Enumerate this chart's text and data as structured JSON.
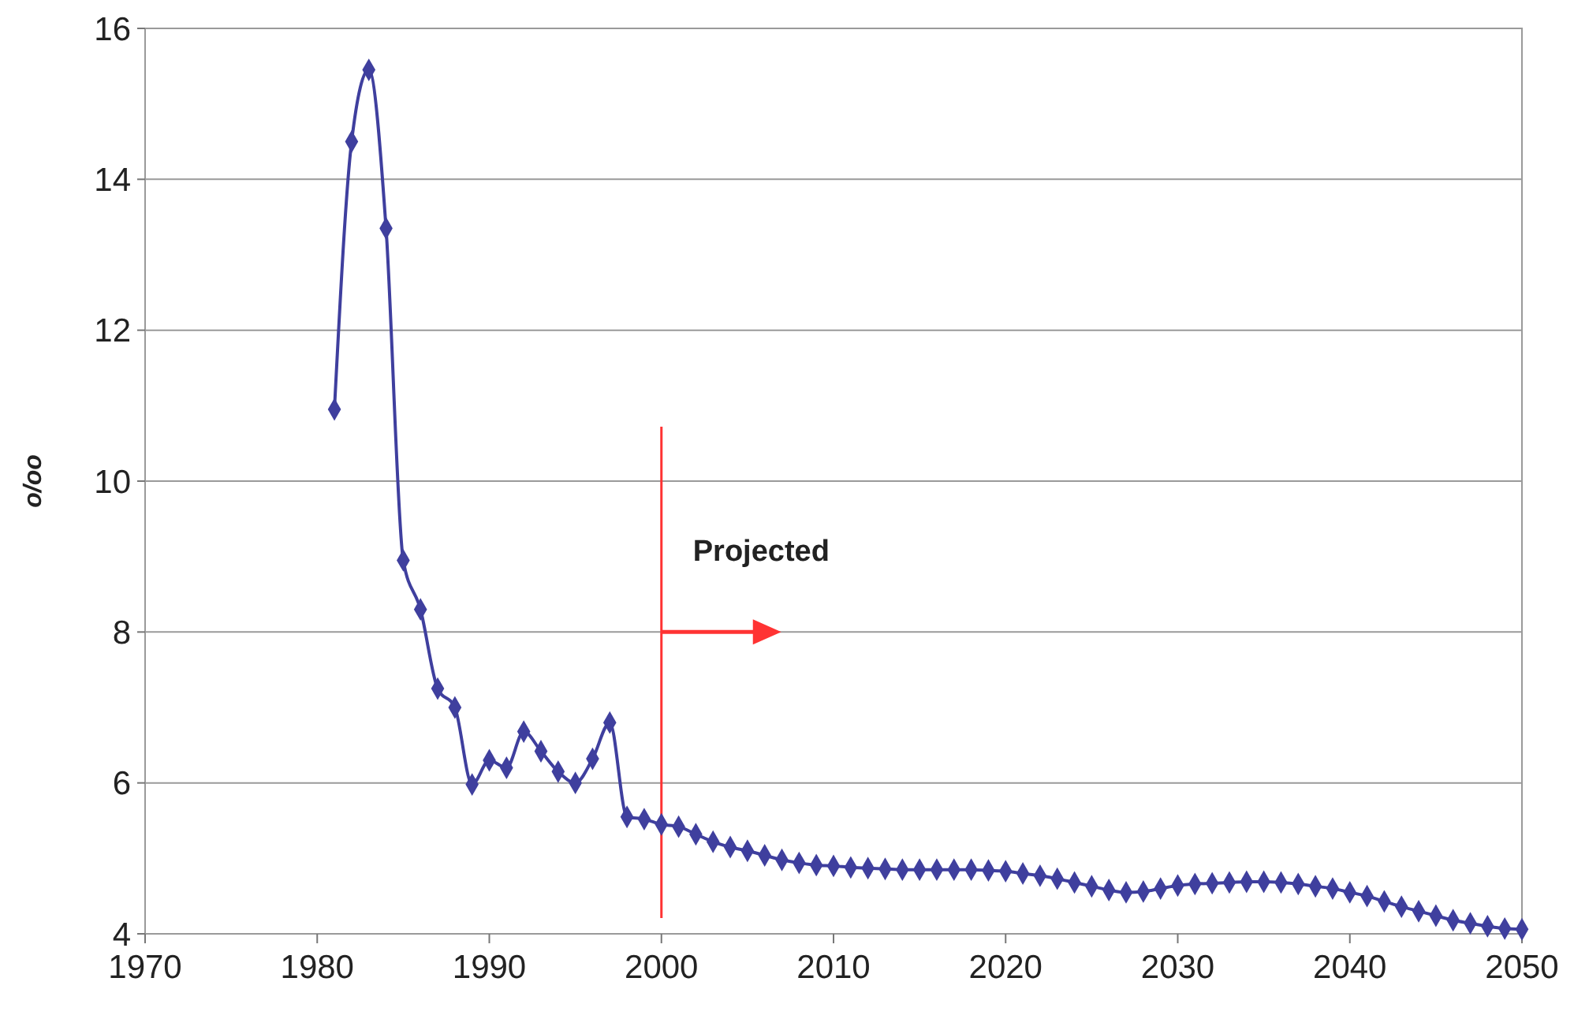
{
  "chart_data": {
    "type": "line",
    "ylabel": "o/oo",
    "x": [
      1981,
      1982,
      1983,
      1984,
      1985,
      1986,
      1987,
      1988,
      1989,
      1990,
      1991,
      1992,
      1993,
      1994,
      1995,
      1996,
      1997,
      1998,
      1999,
      2000,
      2001,
      2002,
      2003,
      2004,
      2005,
      2006,
      2007,
      2008,
      2009,
      2010,
      2011,
      2012,
      2013,
      2014,
      2015,
      2016,
      2017,
      2018,
      2019,
      2020,
      2021,
      2022,
      2023,
      2024,
      2025,
      2026,
      2027,
      2028,
      2029,
      2030,
      2031,
      2032,
      2033,
      2034,
      2035,
      2036,
      2037,
      2038,
      2039,
      2040,
      2041,
      2042,
      2043,
      2044,
      2045,
      2046,
      2047,
      2048,
      2049,
      2050
    ],
    "series": [
      {
        "color": "#3f3f9e",
        "values": [
          10.95,
          14.5,
          15.45,
          13.35,
          8.95,
          8.3,
          7.25,
          7.0,
          5.98,
          6.3,
          6.2,
          6.68,
          6.42,
          6.15,
          6.0,
          6.32,
          6.8,
          5.55,
          5.52,
          5.45,
          5.42,
          5.32,
          5.22,
          5.15,
          5.1,
          5.04,
          4.98,
          4.94,
          4.91,
          4.9,
          4.88,
          4.87,
          4.86,
          4.85,
          4.85,
          4.85,
          4.85,
          4.85,
          4.84,
          4.83,
          4.8,
          4.77,
          4.73,
          4.68,
          4.63,
          4.58,
          4.55,
          4.56,
          4.6,
          4.64,
          4.66,
          4.67,
          4.68,
          4.69,
          4.69,
          4.68,
          4.66,
          4.63,
          4.6,
          4.55,
          4.5,
          4.43,
          4.36,
          4.3,
          4.24,
          4.18,
          4.14,
          4.1,
          4.07,
          4.06
        ]
      }
    ],
    "xlim": [
      1970,
      2050
    ],
    "xticks": [
      1970,
      1980,
      1990,
      2000,
      2010,
      2020,
      2030,
      2040,
      2050
    ],
    "ylim": [
      4,
      16
    ],
    "yticks": [
      4,
      6,
      8,
      10,
      12,
      14,
      16
    ],
    "grid": "y",
    "marker": "diamond",
    "line_style": "solid",
    "ref_lines": [
      {
        "axis": "x",
        "value": 2000,
        "color": "#ff3333"
      }
    ],
    "annotations": [
      {
        "text": "Projected",
        "x": 2000,
        "y": 8
      }
    ]
  }
}
